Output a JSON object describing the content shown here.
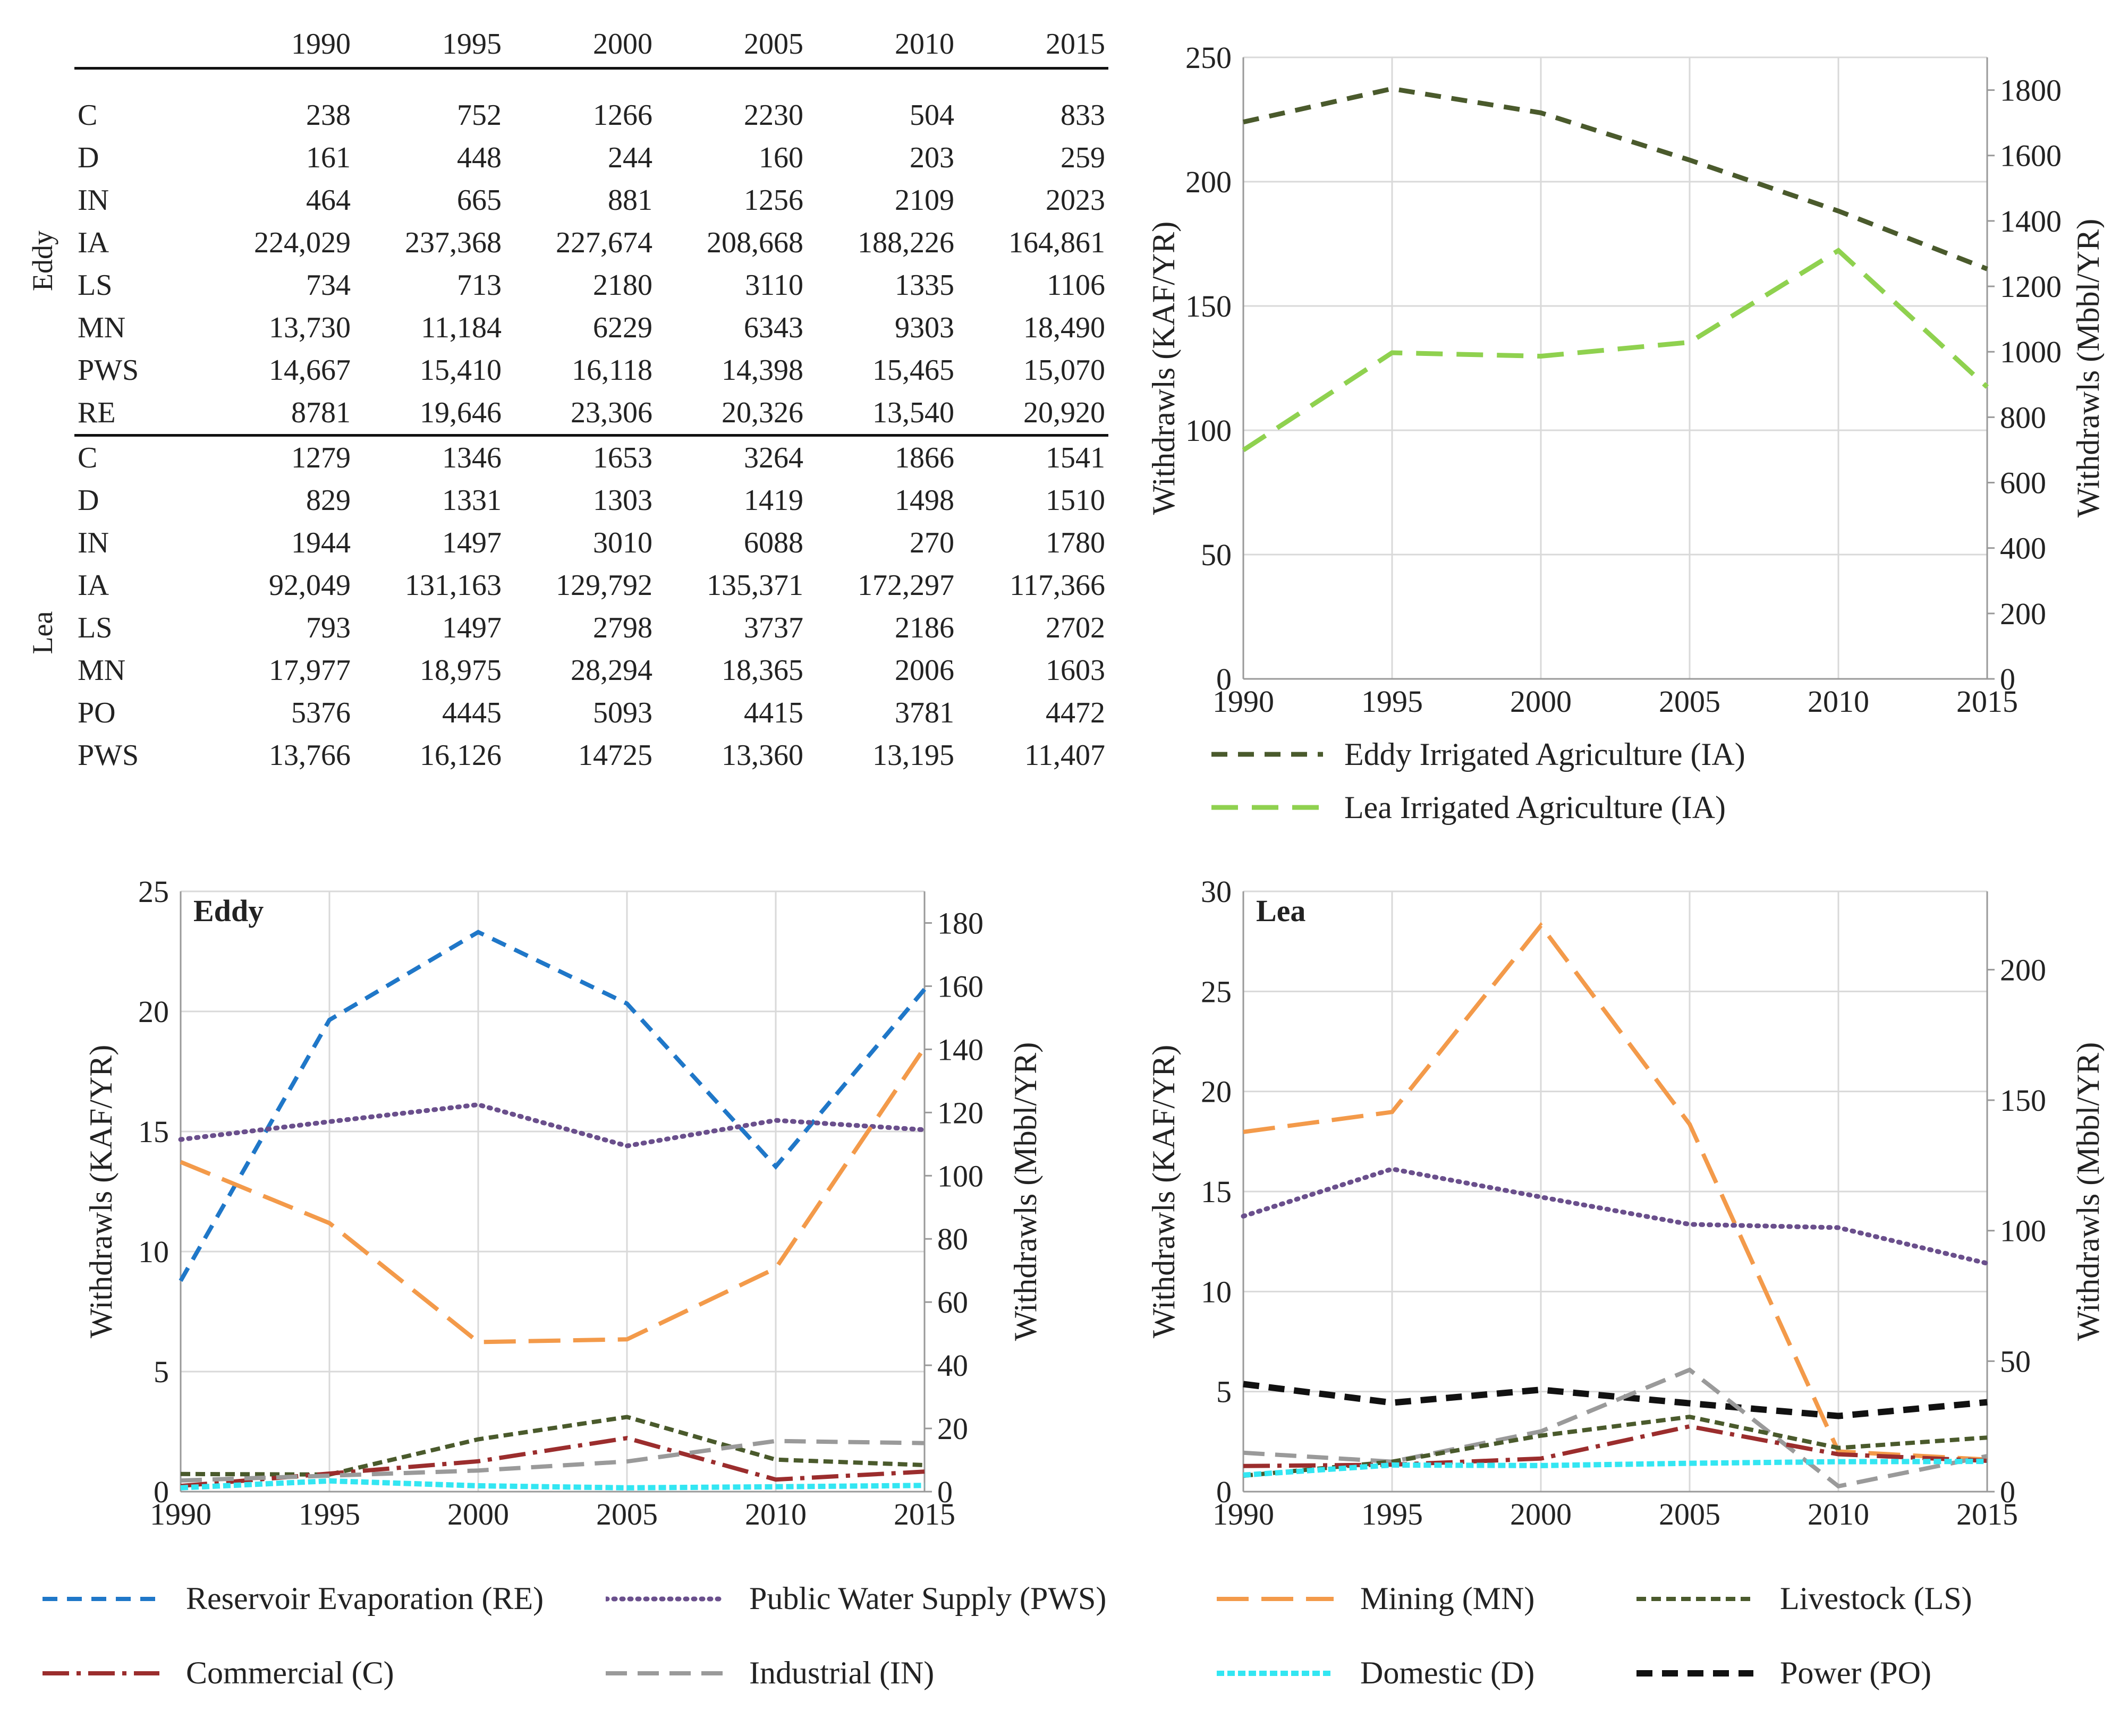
{
  "table": {
    "columns": [
      "1990",
      "1995",
      "2000",
      "2005",
      "2010",
      "2015"
    ],
    "groups": [
      {
        "name": "Eddy",
        "rows": [
          {
            "label": "C",
            "values": [
              "238",
              "752",
              "1266",
              "2230",
              "504",
              "833"
            ]
          },
          {
            "label": "D",
            "values": [
              "161",
              "448",
              "244",
              "160",
              "203",
              "259"
            ]
          },
          {
            "label": "IN",
            "values": [
              "464",
              "665",
              "881",
              "1256",
              "2109",
              "2023"
            ]
          },
          {
            "label": "IA",
            "values": [
              "224,029",
              "237,368",
              "227,674",
              "208,668",
              "188,226",
              "164,861"
            ]
          },
          {
            "label": "LS",
            "values": [
              "734",
              "713",
              "2180",
              "3110",
              "1335",
              "1106"
            ]
          },
          {
            "label": "MN",
            "values": [
              "13,730",
              "11,184",
              "6229",
              "6343",
              "9303",
              "18,490"
            ]
          },
          {
            "label": "PWS",
            "values": [
              "14,667",
              "15,410",
              "16,118",
              "14,398",
              "15,465",
              "15,070"
            ]
          },
          {
            "label": "RE",
            "values": [
              "8781",
              "19,646",
              "23,306",
              "20,326",
              "13,540",
              "20,920"
            ]
          }
        ]
      },
      {
        "name": "Lea",
        "rows": [
          {
            "label": "C",
            "values": [
              "1279",
              "1346",
              "1653",
              "3264",
              "1866",
              "1541"
            ]
          },
          {
            "label": "D",
            "values": [
              "829",
              "1331",
              "1303",
              "1419",
              "1498",
              "1510"
            ]
          },
          {
            "label": "IN",
            "values": [
              "1944",
              "1497",
              "3010",
              "6088",
              "270",
              "1780"
            ]
          },
          {
            "label": "IA",
            "values": [
              "92,049",
              "131,163",
              "129,792",
              "135,371",
              "172,297",
              "117,366"
            ]
          },
          {
            "label": "LS",
            "values": [
              "793",
              "1497",
              "2798",
              "3737",
              "2186",
              "2702"
            ]
          },
          {
            "label": "MN",
            "values": [
              "17,977",
              "18,975",
              "28,294",
              "18,365",
              "2006",
              "1603"
            ]
          },
          {
            "label": "PO",
            "values": [
              "5376",
              "4445",
              "5093",
              "4415",
              "3781",
              "4472"
            ]
          },
          {
            "label": "PWS",
            "values": [
              "13,766",
              "16,126",
              "14725",
              "13,360",
              "13,195",
              "11,407"
            ]
          }
        ]
      }
    ]
  },
  "chart_data": [
    {
      "type": "line",
      "title": "",
      "x": [
        1990,
        1995,
        2000,
        2005,
        2010,
        2015
      ],
      "xlim": [
        1990,
        2015
      ],
      "ylabel": "Withdrawls (KAF/YR)",
      "ylabel_right": "Withdrawls (Mbbl/YR)",
      "ylim": [
        0,
        250
      ],
      "yticks": [
        0,
        50,
        100,
        150,
        200,
        250
      ],
      "ylim_right": [
        0,
        1900
      ],
      "yticks_right": [
        0,
        200,
        400,
        600,
        800,
        1000,
        1200,
        1400,
        1600,
        1800
      ],
      "grid": true,
      "legend_position": "bottom",
      "series": [
        {
          "name": "Eddy Irrigated Agriculture (IA)",
          "color": "#4a5a2c",
          "dash": "short",
          "values": [
            224.0,
            237.4,
            227.7,
            208.7,
            188.2,
            164.9
          ]
        },
        {
          "name": "Lea Irrigated Agriculture (IA)",
          "color": "#8fd14f",
          "dash": "long",
          "values": [
            92.0,
            131.2,
            129.8,
            135.4,
            172.3,
            117.4
          ]
        }
      ]
    },
    {
      "type": "line",
      "title": "Eddy",
      "x": [
        1990,
        1995,
        2000,
        2005,
        2010,
        2015
      ],
      "xlim": [
        1990,
        2015
      ],
      "ylabel": "Withdrawls (KAF/YR)",
      "ylabel_right": "Withdrawls (Mbbl/YR)",
      "ylim": [
        0,
        25
      ],
      "yticks": [
        0,
        5,
        10,
        15,
        20,
        25
      ],
      "ylim_right": [
        0,
        190
      ],
      "yticks_right": [
        0,
        20,
        40,
        60,
        80,
        100,
        120,
        140,
        160,
        180
      ],
      "grid": true,
      "series": [
        {
          "name": "Reservoir Evaporation (RE)",
          "key": "RE",
          "values": [
            8.781,
            19.646,
            23.306,
            20.326,
            13.54,
            20.92
          ]
        },
        {
          "name": "Public Water Supply (PWS)",
          "key": "PWS",
          "values": [
            14.667,
            15.41,
            16.118,
            14.398,
            15.465,
            15.07
          ]
        },
        {
          "name": "Mining (MN)",
          "key": "MN",
          "values": [
            13.73,
            11.184,
            6.229,
            6.343,
            9.303,
            18.49
          ]
        },
        {
          "name": "Livestock (LS)",
          "key": "LS",
          "values": [
            0.734,
            0.713,
            2.18,
            3.11,
            1.335,
            1.106
          ]
        },
        {
          "name": "Commercial (C)",
          "key": "C",
          "values": [
            0.238,
            0.752,
            1.266,
            2.23,
            0.504,
            0.833
          ]
        },
        {
          "name": "Industrial (IN)",
          "key": "IN",
          "values": [
            0.464,
            0.665,
            0.881,
            1.256,
            2.109,
            2.023
          ]
        },
        {
          "name": "Domestic (D)",
          "key": "D",
          "values": [
            0.161,
            0.448,
            0.244,
            0.16,
            0.203,
            0.259
          ]
        }
      ]
    },
    {
      "type": "line",
      "title": "Lea",
      "x": [
        1990,
        1995,
        2000,
        2005,
        2010,
        2015
      ],
      "xlim": [
        1990,
        2015
      ],
      "ylabel": "Withdrawls (KAF/YR)",
      "ylabel_right": "Withdrawls (Mbbl/YR)",
      "ylim": [
        0,
        30
      ],
      "yticks": [
        0,
        5,
        10,
        15,
        20,
        25,
        30
      ],
      "ylim_right": [
        0,
        230
      ],
      "yticks_right": [
        0,
        50,
        100,
        150,
        200
      ],
      "grid": true,
      "series": [
        {
          "name": "Mining (MN)",
          "key": "MN",
          "values": [
            17.977,
            18.975,
            28.294,
            18.365,
            2.006,
            1.603
          ]
        },
        {
          "name": "Public Water Supply (PWS)",
          "key": "PWS",
          "values": [
            13.766,
            16.126,
            14.725,
            13.36,
            13.195,
            11.407
          ]
        },
        {
          "name": "Power (PO)",
          "key": "PO",
          "values": [
            5.376,
            4.445,
            5.093,
            4.415,
            3.781,
            4.472
          ]
        },
        {
          "name": "Industrial (IN)",
          "key": "IN",
          "values": [
            1.944,
            1.497,
            3.01,
            6.088,
            0.27,
            1.78
          ]
        },
        {
          "name": "Livestock (LS)",
          "key": "LS",
          "values": [
            0.793,
            1.497,
            2.798,
            3.737,
            2.186,
            2.702
          ]
        },
        {
          "name": "Commercial (C)",
          "key": "C",
          "values": [
            1.279,
            1.346,
            1.653,
            3.264,
            1.866,
            1.541
          ]
        },
        {
          "name": "Domestic (D)",
          "key": "D",
          "values": [
            0.829,
            1.331,
            1.303,
            1.419,
            1.498,
            1.51
          ]
        }
      ]
    }
  ],
  "legend": [
    {
      "key": "RE",
      "label": "Reservoir Evaporation (RE)",
      "color": "#1f77c8",
      "dash": "28,18",
      "width": 8
    },
    {
      "key": "PWS",
      "label": "Public Water Supply (PWS)",
      "color": "#6a4f8c",
      "dash": "3,12",
      "width": 9
    },
    {
      "key": "MN",
      "label": "Mining (MN)",
      "color": "#f39a4a",
      "dash": "60,24",
      "width": 8
    },
    {
      "key": "LS",
      "label": "Livestock (LS)",
      "color": "#4a5a2c",
      "dash": "18,10",
      "width": 8
    },
    {
      "key": "C",
      "label": "Commercial (C)",
      "color": "#9b2d2d",
      "dash": "50,14,8,14",
      "width": 8
    },
    {
      "key": "IN",
      "label": "Industrial (IN)",
      "color": "#9a9a9a",
      "dash": "40,20",
      "width": 8
    },
    {
      "key": "D",
      "label": "Domestic (D)",
      "color": "#33e6f2",
      "dash": "14,6",
      "width": 10
    },
    {
      "key": "PO",
      "label": "Power (PO)",
      "color": "#111111",
      "dash": "30,18",
      "width": 12
    }
  ]
}
